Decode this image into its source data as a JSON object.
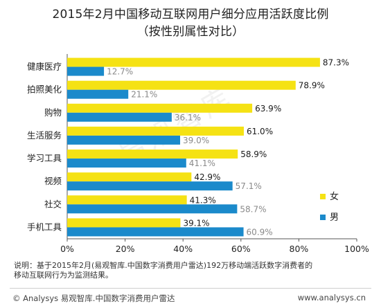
{
  "page": {
    "title_line1": "2015年2月中国移动互联网用户细分应用活跃度比例",
    "title_line2": "（按性别属性对比）",
    "note_line1": "说明：基于2015年2月(易观智库.中国数字消费用户雷达)192万移动端活跃数字消费者的",
    "note_line2": "移动互联网行为为监测结果。",
    "footer_left": "© Analysys 易观智库.中国数字消费用户雷达",
    "footer_right": "www.analysys.cn",
    "watermark": "易观智库"
  },
  "chart_data": {
    "type": "bar",
    "orientation": "horizontal",
    "categories": [
      "健康医疗",
      "拍照美化",
      "购物",
      "生活服务",
      "学习工具",
      "视频",
      "社交",
      "手机工具"
    ],
    "series": [
      {
        "name": "女",
        "color": "#F5E214",
        "values": [
          87.3,
          78.9,
          63.9,
          61.0,
          58.9,
          42.9,
          41.3,
          39.1
        ]
      },
      {
        "name": "男",
        "color": "#1B8ACB",
        "values": [
          12.7,
          21.1,
          36.1,
          39.0,
          41.1,
          57.1,
          58.7,
          60.9
        ]
      }
    ],
    "xlim": [
      0,
      100
    ],
    "xticks": [
      "0%",
      "20%",
      "40%",
      "60%",
      "80%",
      "100%"
    ],
    "legend_position": "right",
    "grid": false
  }
}
